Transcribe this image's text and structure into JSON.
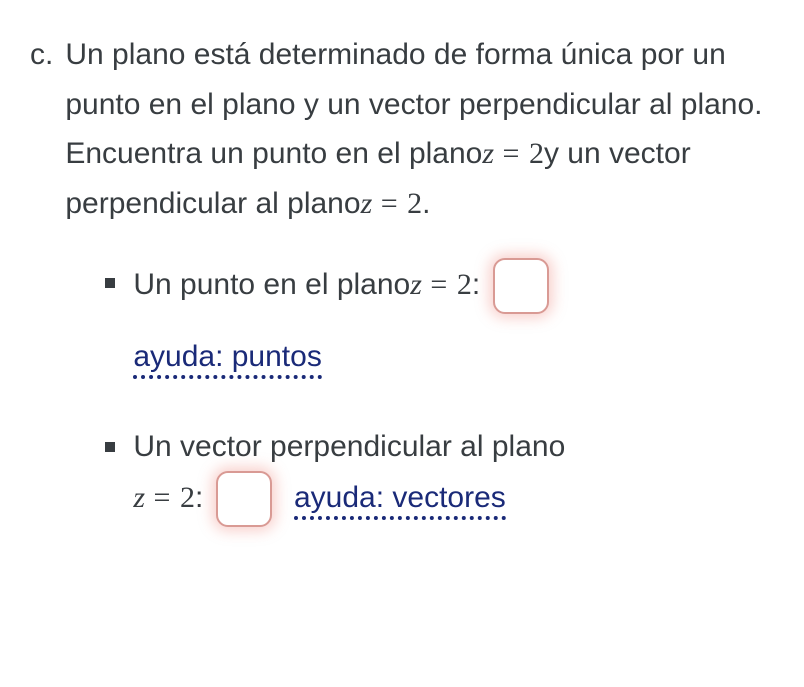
{
  "question": {
    "label": "c.",
    "intro_part1": "Un plano está determinado de forma única por un punto en el plano y un vector perpendicular al plano. Encuentra un punto en el plano",
    "eq1_var": "z",
    "eq1_sym": " = ",
    "eq1_val": "2",
    "intro_part2": "y un vector perpendicular al plano",
    "eq2_var": "z",
    "eq2_sym": " = ",
    "eq2_val": "2",
    "intro_end": "."
  },
  "sub": {
    "point": {
      "text": "Un punto en el plano",
      "eq_var": "z",
      "eq_sym": " = ",
      "eq_val": "2",
      "colon": ":",
      "help": "ayuda: puntos"
    },
    "vector": {
      "text": "Un vector perpendicular al plano",
      "eq_var": "z",
      "eq_sym": " = ",
      "eq_val": "2",
      "colon": ":",
      "help": "ayuda: vectores"
    }
  },
  "colors": {
    "text": "#383d41",
    "link": "#1a2a78",
    "box_border": "#d99a94",
    "box_glow": "rgba(235,120,110,0.35)",
    "background": "#ffffff"
  }
}
